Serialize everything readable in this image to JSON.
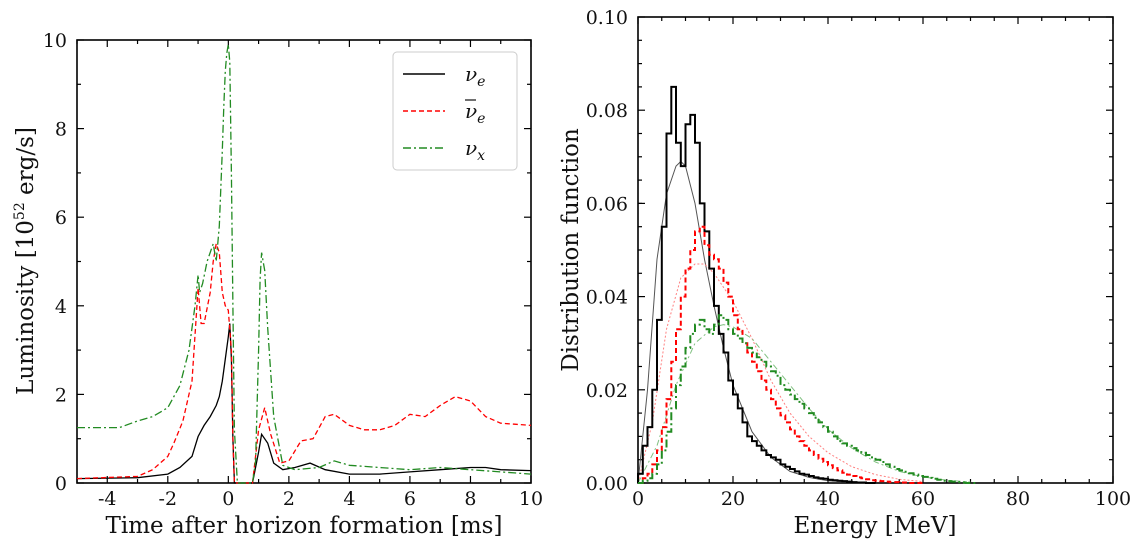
{
  "chart_data": [
    {
      "type": "line",
      "title": "",
      "xlabel": "Time after horizon formation [ms]",
      "ylabel": "Luminosity [10$^{52}$ erg/s]",
      "ylabel_parts": [
        "Luminosity [10",
        "52",
        " erg/s]"
      ],
      "xlim": [
        -5,
        10
      ],
      "ylim": [
        0,
        10
      ],
      "xticks": [
        -4,
        -2,
        0,
        2,
        4,
        6,
        8,
        10
      ],
      "yticks": [
        0,
        2,
        4,
        6,
        8,
        10
      ],
      "legend_position": "top-right",
      "series": [
        {
          "name": "ν_e",
          "legend_symbol": "ν",
          "legend_sub": "e",
          "legend_bar": false,
          "color": "#000000",
          "dash": "",
          "x": [
            -5,
            -3,
            -2,
            -1.6,
            -1.2,
            -1.0,
            -0.8,
            -0.6,
            -0.4,
            -0.3,
            -0.2,
            -0.1,
            0.0,
            0.05,
            0.1,
            0.15,
            0.2,
            0.8,
            1.0,
            1.1,
            1.3,
            1.5,
            1.8,
            2.2,
            2.7,
            3.2,
            4.0,
            5.0,
            6.0,
            7.0,
            8.0,
            8.5,
            9.0,
            10.0
          ],
          "y": [
            0.1,
            0.12,
            0.2,
            0.35,
            0.6,
            1.05,
            1.3,
            1.5,
            1.75,
            1.95,
            2.3,
            2.8,
            3.3,
            3.6,
            2.8,
            1.0,
            0.0,
            0.0,
            0.7,
            1.1,
            0.9,
            0.45,
            0.3,
            0.35,
            0.45,
            0.3,
            0.2,
            0.2,
            0.25,
            0.3,
            0.35,
            0.35,
            0.3,
            0.28
          ]
        },
        {
          "name": "ν̄_e",
          "legend_symbol": "ν",
          "legend_sub": "e",
          "legend_bar": true,
          "color": "#ff0000",
          "dash": "5,3",
          "x": [
            -5,
            -3,
            -2.5,
            -2.0,
            -1.8,
            -1.5,
            -1.2,
            -1.0,
            -0.9,
            -0.8,
            -0.6,
            -0.5,
            -0.4,
            -0.3,
            -0.2,
            -0.1,
            0.0,
            0.1,
            0.15,
            0.2,
            0.8,
            1.0,
            1.2,
            1.4,
            1.7,
            2.0,
            2.4,
            2.8,
            3.2,
            3.5,
            4.0,
            4.5,
            5.0,
            5.5,
            6.0,
            6.5,
            7.0,
            7.5,
            8.0,
            8.5,
            9.0,
            10.0
          ],
          "y": [
            0.1,
            0.15,
            0.3,
            0.6,
            0.9,
            1.4,
            2.3,
            4.4,
            3.6,
            3.6,
            4.3,
            5.0,
            5.4,
            5.2,
            4.3,
            4.0,
            3.9,
            3.0,
            1.0,
            0.0,
            0.0,
            1.2,
            1.7,
            1.1,
            0.45,
            0.5,
            0.95,
            1.0,
            1.5,
            1.55,
            1.3,
            1.2,
            1.2,
            1.3,
            1.55,
            1.5,
            1.75,
            1.95,
            1.85,
            1.5,
            1.35,
            1.3
          ]
        },
        {
          "name": "ν_x",
          "legend_symbol": "ν",
          "legend_sub": "x",
          "legend_bar": false,
          "color": "#228b22",
          "dash": "8,3,2,3",
          "x": [
            -5,
            -3.6,
            -3.0,
            -2.5,
            -2.0,
            -1.6,
            -1.3,
            -1.1,
            -1.0,
            -0.95,
            -0.85,
            -0.7,
            -0.5,
            -0.4,
            -0.3,
            -0.2,
            -0.15,
            -0.1,
            -0.05,
            0.0,
            0.05,
            0.1,
            0.15,
            0.2,
            0.3,
            0.8,
            0.9,
            1.0,
            1.05,
            1.1,
            1.2,
            1.3,
            1.5,
            1.8,
            2.2,
            3.0,
            3.5,
            4.0,
            5.0,
            6.0,
            7.0,
            8.0,
            9.0,
            10.0
          ],
          "y": [
            1.25,
            1.25,
            1.4,
            1.5,
            1.7,
            2.2,
            3.0,
            4.0,
            4.7,
            4.3,
            4.5,
            5.0,
            5.4,
            5.0,
            5.8,
            7.5,
            8.5,
            9.3,
            9.7,
            9.9,
            9.5,
            7.0,
            4.0,
            1.2,
            0.0,
            0.0,
            0.5,
            3.0,
            4.6,
            5.2,
            4.8,
            3.5,
            1.5,
            0.4,
            0.3,
            0.35,
            0.5,
            0.4,
            0.35,
            0.3,
            0.35,
            0.3,
            0.25,
            0.2
          ]
        }
      ]
    },
    {
      "type": "line",
      "title": "",
      "xlabel": "Energy [MeV]",
      "ylabel": "Distribution function",
      "xlim": [
        0,
        100
      ],
      "ylim": [
        0,
        0.1
      ],
      "xticks": [
        0,
        20,
        40,
        60,
        80,
        100
      ],
      "yticks": [
        0.0,
        0.02,
        0.04,
        0.06,
        0.08,
        0.1
      ],
      "ytick_labels": [
        "0.00",
        "0.02",
        "0.04",
        "0.06",
        "0.08",
        "0.10"
      ],
      "histograms": [
        {
          "name": "ν_e",
          "color": "#000000",
          "dash": "",
          "bin_width": 1,
          "x_start": 0,
          "values": [
            0.002,
            0.008,
            0.012,
            0.02,
            0.035,
            0.055,
            0.075,
            0.085,
            0.073,
            0.068,
            0.077,
            0.079,
            0.073,
            0.06,
            0.054,
            0.046,
            0.038,
            0.032,
            0.028,
            0.022,
            0.019,
            0.016,
            0.013,
            0.01,
            0.009,
            0.008,
            0.007,
            0.006,
            0.0055,
            0.005,
            0.004,
            0.0035,
            0.003,
            0.0025,
            0.002,
            0.0018,
            0.0015,
            0.0012,
            0.001,
            0.0009,
            0.0007,
            0.0006,
            0.0005,
            0.0004,
            0.0003,
            0.0002,
            0.0001,
            0.0001,
            0.0,
            0.0
          ]
        },
        {
          "name": "ν̄_e",
          "color": "#ff0000",
          "dash": "5,3",
          "bin_width": 1,
          "x_start": 0,
          "values": [
            0.0,
            0.001,
            0.002,
            0.004,
            0.007,
            0.012,
            0.018,
            0.026,
            0.033,
            0.04,
            0.046,
            0.05,
            0.054,
            0.055,
            0.051,
            0.049,
            0.048,
            0.046,
            0.043,
            0.04,
            0.036,
            0.033,
            0.03,
            0.028,
            0.026,
            0.024,
            0.022,
            0.02,
            0.018,
            0.016,
            0.0145,
            0.013,
            0.0115,
            0.01,
            0.009,
            0.008,
            0.007,
            0.006,
            0.0052,
            0.0045,
            0.0038,
            0.0032,
            0.0027,
            0.0022,
            0.0018,
            0.0015,
            0.0012,
            0.001,
            0.0008,
            0.0006,
            0.0005,
            0.0004,
            0.0003,
            0.0002,
            0.0002,
            0.0001,
            0.0001,
            0.0,
            0.0,
            0.0
          ]
        },
        {
          "name": "ν_x",
          "color": "#228b22",
          "dash": "8,3,2,3",
          "bin_width": 1,
          "x_start": 0,
          "values": [
            0.0,
            0.0005,
            0.001,
            0.002,
            0.004,
            0.007,
            0.011,
            0.016,
            0.021,
            0.025,
            0.029,
            0.032,
            0.034,
            0.035,
            0.033,
            0.032,
            0.034,
            0.036,
            0.035,
            0.033,
            0.032,
            0.031,
            0.03,
            0.029,
            0.028,
            0.027,
            0.026,
            0.025,
            0.024,
            0.023,
            0.021,
            0.02,
            0.019,
            0.018,
            0.017,
            0.016,
            0.015,
            0.014,
            0.013,
            0.012,
            0.011,
            0.01,
            0.009,
            0.0085,
            0.008,
            0.0075,
            0.007,
            0.0065,
            0.006,
            0.0055,
            0.005,
            0.0045,
            0.004,
            0.0035,
            0.003,
            0.0027,
            0.0024,
            0.0021,
            0.0018,
            0.0015,
            0.0013,
            0.0011,
            0.0009,
            0.0007,
            0.0005,
            0.0004,
            0.0003,
            0.0002,
            0.0001,
            0.0,
            0.0
          ]
        }
      ],
      "fits": [
        {
          "color": "#555555",
          "dash": "",
          "x": [
            0,
            2,
            4,
            6,
            8,
            9,
            10,
            12,
            14,
            16,
            18,
            20,
            24,
            28,
            32,
            36,
            40,
            45,
            50
          ],
          "y": [
            0.0,
            0.02,
            0.048,
            0.062,
            0.068,
            0.069,
            0.068,
            0.06,
            0.048,
            0.038,
            0.029,
            0.021,
            0.011,
            0.0055,
            0.0025,
            0.0012,
            0.0005,
            0.0002,
            0.0
          ]
        },
        {
          "color": "#ff8080",
          "dash": "2,2",
          "x": [
            0,
            3,
            6,
            9,
            12,
            14,
            16,
            18,
            20,
            24,
            28,
            32,
            36,
            40,
            45,
            50,
            55,
            60
          ],
          "y": [
            0.0,
            0.013,
            0.033,
            0.044,
            0.047,
            0.047,
            0.045,
            0.042,
            0.039,
            0.031,
            0.022,
            0.015,
            0.01,
            0.0065,
            0.0035,
            0.0018,
            0.0008,
            0.0003
          ]
        },
        {
          "color": "#80c080",
          "dash": "6,3,2,3",
          "x": [
            0,
            4,
            8,
            12,
            16,
            18,
            20,
            24,
            28,
            32,
            36,
            40,
            45,
            50,
            55,
            60,
            65,
            70
          ],
          "y": [
            0.0,
            0.008,
            0.021,
            0.03,
            0.0335,
            0.034,
            0.0335,
            0.031,
            0.026,
            0.021,
            0.016,
            0.0115,
            0.0075,
            0.0045,
            0.0025,
            0.0013,
            0.0006,
            0.0002
          ]
        }
      ]
    }
  ]
}
